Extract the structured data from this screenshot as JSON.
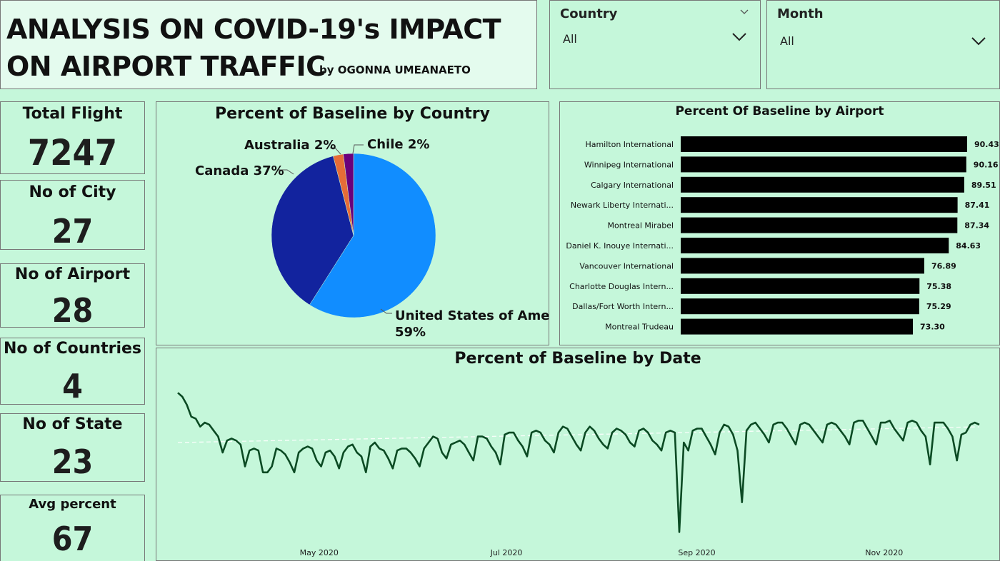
{
  "header": {
    "title": "ANALYSIS ON COVID-19's IMPACT ON AIRPORT TRAFFIC",
    "byline": "by OGONNA UMEANAETO"
  },
  "filters": {
    "country": {
      "label": "Country",
      "value": "All"
    },
    "month": {
      "label": "Month",
      "value": "All"
    }
  },
  "kpis": [
    {
      "label": "Total Flight",
      "value": "7247"
    },
    {
      "label": "No of City",
      "value": "27"
    },
    {
      "label": "No of Airport",
      "value": "28"
    },
    {
      "label": "No of Countries",
      "value": "4"
    },
    {
      "label": "No of State",
      "value": "23"
    },
    {
      "label": "Avg percent",
      "value": "67"
    }
  ],
  "colors": {
    "background": "#c5f7da",
    "usa": "#118dff",
    "canada": "#12239e",
    "australia": "#e66c37",
    "chile": "#6b007b",
    "bars": "#000000",
    "line": "#0b4a23"
  },
  "chart_data": [
    {
      "type": "pie",
      "title": "Percent of Baseline by Country",
      "slices": [
        {
          "name": "United States of Ame...",
          "value": 59,
          "label": "59%"
        },
        {
          "name": "Canada",
          "value": 37,
          "label": "37%"
        },
        {
          "name": "Australia",
          "value": 2,
          "label": "2%"
        },
        {
          "name": "Chile",
          "value": 2,
          "label": "2%"
        }
      ]
    },
    {
      "type": "bar",
      "orientation": "horizontal",
      "title": "Percent Of Baseline by Airport",
      "categories": [
        "Hamilton International",
        "Winnipeg International",
        "Calgary International",
        "Newark Liberty Internati...",
        "Montreal Mirabel",
        "Daniel K. Inouye Internati...",
        "Vancouver International",
        "Charlotte Douglas Intern...",
        "Dallas/Fort Worth Intern...",
        "Montreal Trudeau"
      ],
      "values": [
        90.43,
        90.16,
        89.51,
        87.41,
        87.34,
        84.63,
        76.89,
        75.38,
        75.29,
        73.3
      ],
      "value_labels": [
        "90.43",
        "90.16",
        "89.51",
        "87.41",
        "87.34",
        "84.63",
        "76.89",
        "75.38",
        "75.29",
        "73.30"
      ],
      "xlim": [
        0,
        90.43
      ]
    },
    {
      "type": "line",
      "title": "Percent of Baseline by Date",
      "x_start": "2020-03-16",
      "x_end": "2020-12-02",
      "x_ticks": [
        "May 2020",
        "Jul 2020",
        "Sep 2020",
        "Nov 2020"
      ],
      "ylim": [
        15,
        100
      ],
      "average": 67,
      "values": [
        92,
        90,
        86,
        80,
        79,
        75,
        77,
        76,
        73,
        70,
        62,
        68,
        69,
        68,
        66,
        55,
        63,
        64,
        63,
        52,
        52,
        55,
        64,
        63,
        61,
        57,
        52,
        62,
        64,
        65,
        64,
        58,
        55,
        62,
        63,
        60,
        54,
        62,
        65,
        66,
        62,
        60,
        52,
        65,
        67,
        64,
        63,
        59,
        54,
        63,
        64,
        64,
        62,
        59,
        55,
        64,
        67,
        70,
        69,
        62,
        59,
        66,
        67,
        68,
        66,
        62,
        58,
        70,
        70,
        69,
        65,
        62,
        56,
        71,
        72,
        72,
        68,
        65,
        60,
        72,
        73,
        72,
        68,
        66,
        62,
        72,
        75,
        74,
        70,
        66,
        63,
        72,
        75,
        73,
        69,
        66,
        64,
        72,
        74,
        73,
        71,
        67,
        65,
        73,
        74,
        72,
        68,
        66,
        63,
        72,
        73,
        72,
        22,
        67,
        63,
        73,
        74,
        74,
        70,
        66,
        61,
        72,
        76,
        75,
        71,
        63,
        37,
        73,
        76,
        77,
        74,
        71,
        67,
        76,
        77,
        77,
        74,
        70,
        66,
        76,
        77,
        76,
        73,
        70,
        67,
        76,
        77,
        76,
        73,
        70,
        66,
        77,
        78,
        78,
        74,
        70,
        66,
        77,
        77,
        78,
        74,
        71,
        68,
        77,
        78,
        77,
        73,
        70,
        56,
        77,
        77,
        77,
        74,
        70,
        58,
        71,
        72,
        76,
        77,
        76
      ]
    }
  ]
}
